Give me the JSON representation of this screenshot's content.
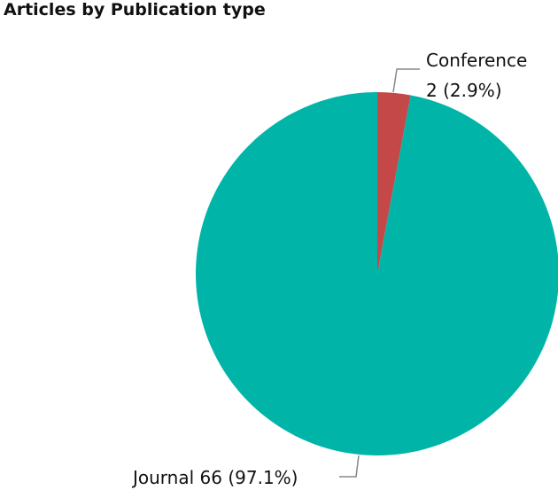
{
  "chart_data": {
    "type": "pie",
    "title": "Articles by Publication type",
    "categories": [
      "Journal",
      "Conference"
    ],
    "values": [
      66,
      2
    ],
    "percent_labels": [
      "97.1%",
      "2.9%"
    ],
    "labels": [
      "Journal 66 (97.1%)",
      "Conference",
      "2 (2.9%)"
    ],
    "colors": [
      "#00b5a8",
      "#c44848"
    ]
  }
}
